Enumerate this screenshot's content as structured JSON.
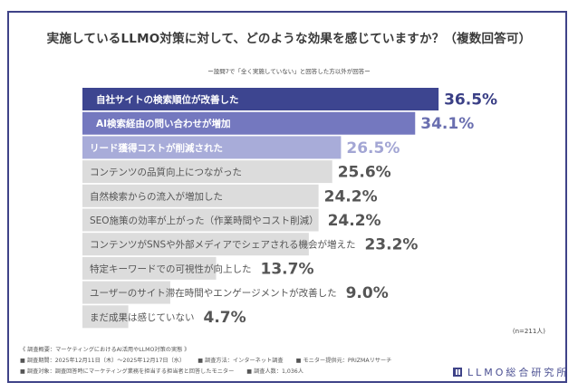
{
  "chart_data": {
    "type": "bar",
    "orientation": "horizontal",
    "title": "実施しているLLMO対策に対して、どのような効果を感じていますか？（複数回答可）",
    "subtitle": "ー設問7で「全く実施していない」と回答した方以外が回答ー",
    "categories": [
      "自社サイトの検索順位が改善した",
      "AI検索経由の問い合わせが増加",
      "リード獲得コストが削減された",
      "コンテンツの品質向上につながった",
      "自然検索からの流入が増加した",
      "SEO施策の効率が上がった（作業時間やコスト削減）",
      "コンテンツがSNSや外部メディアでシェアされる機会が増えた",
      "特定キーワードでの可視性が向上した",
      "ユーザーのサイト滞在時間やエンゲージメントが改善した",
      "まだ成果は感じていない"
    ],
    "values": [
      36.5,
      34.1,
      26.5,
      25.6,
      24.2,
      24.2,
      23.2,
      13.7,
      9.0,
      4.7
    ],
    "value_labels": [
      "36.5%",
      "34.1%",
      "26.5%",
      "25.6%",
      "24.2%",
      "24.2%",
      "23.2%",
      "13.7%",
      "9.0%",
      "4.7%"
    ],
    "unit": "%",
    "xlabel": "",
    "ylabel": "",
    "xlim": [
      0,
      40
    ],
    "grid": false,
    "legend": "none",
    "sample_note": "(n=211人)"
  },
  "colors": {
    "frame": "#3f4388",
    "bar_fills": [
      "#3d4590",
      "#7478bf",
      "#a8acd9",
      "#dcdcdc",
      "#dcdcdc",
      "#dcdcdc",
      "#dcdcdc",
      "#dcdcdc",
      "#dcdcdc",
      "#dcdcdc"
    ],
    "label_colors": [
      "#ffffff",
      "#ffffff",
      "#ffffff",
      "#555555",
      "#555555",
      "#555555",
      "#555555",
      "#555555",
      "#555555",
      "#555555"
    ],
    "value_colors": [
      "#3a3f86",
      "#6a6fb0",
      "#a3a6d4",
      "#555555",
      "#555555",
      "#555555",
      "#555555",
      "#555555",
      "#555555",
      "#555555"
    ]
  },
  "footer": {
    "overview": "《 調査概要：マーケティングにおけるAI活用やLLMO対策の実態 》",
    "period": "■ 調査期間：2025年12月11日（木）～2025年12月17日（水）",
    "method": "■ 調査方法：インターネット調査",
    "provider": "■ モニター提供元：PRIZMAリサーチ",
    "target": "■ 調査対象：調査回答時にマーケティング業務を担当する担当者と回答したモニター",
    "count": "■ 調査人数：1,036人"
  },
  "logo": {
    "text": "LLMO総合研究所",
    "icon": "llmo-logo-icon"
  }
}
